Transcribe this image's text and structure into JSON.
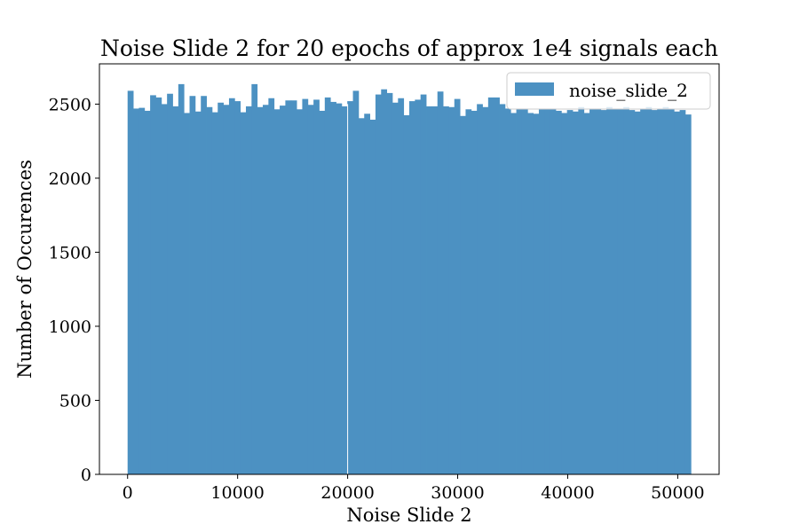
{
  "chart_data": {
    "type": "bar",
    "title": "Noise Slide 2 for 20 epochs of approx 1e4 signals each",
    "xlabel": "Noise Slide 2",
    "ylabel": "Number of Occurences",
    "xlim": [
      -2560,
      53760
    ],
    "ylim": [
      0,
      2772
    ],
    "xticks": [
      0,
      10000,
      20000,
      30000,
      40000,
      50000
    ],
    "yticks": [
      0,
      500,
      1000,
      1500,
      2000,
      2500
    ],
    "bin_range": [
      0,
      51200
    ],
    "gap_at": 20000,
    "grid": false,
    "legend_position": "top-right",
    "series": [
      {
        "name": "noise_slide_2",
        "color": "#4c91c2",
        "values": [
          2590,
          2470,
          2475,
          2455,
          2560,
          2545,
          2500,
          2570,
          2485,
          2635,
          2440,
          2555,
          2450,
          2555,
          2480,
          2445,
          2510,
          2495,
          2540,
          2520,
          2445,
          2485,
          2635,
          2480,
          2495,
          2540,
          2465,
          2490,
          2525,
          2525,
          2465,
          2535,
          2495,
          2530,
          2455,
          2545,
          2515,
          2505,
          2485,
          2520,
          2590,
          2405,
          2435,
          2395,
          2565,
          2600,
          2575,
          2510,
          2540,
          2425,
          2520,
          2530,
          2565,
          2485,
          2485,
          2585,
          2485,
          2480,
          2535,
          2420,
          2465,
          2455,
          2500,
          2480,
          2545,
          2545,
          2500,
          2470,
          2440,
          2470,
          2470,
          2440,
          2435,
          2470,
          2470,
          2470,
          2455,
          2440,
          2460,
          2450,
          2480,
          2440,
          2470,
          2470,
          2460,
          2480,
          2470,
          2470,
          2480,
          2460,
          2450,
          2470,
          2480,
          2460,
          2470,
          2480,
          2470,
          2450,
          2460,
          2430
        ]
      }
    ]
  }
}
